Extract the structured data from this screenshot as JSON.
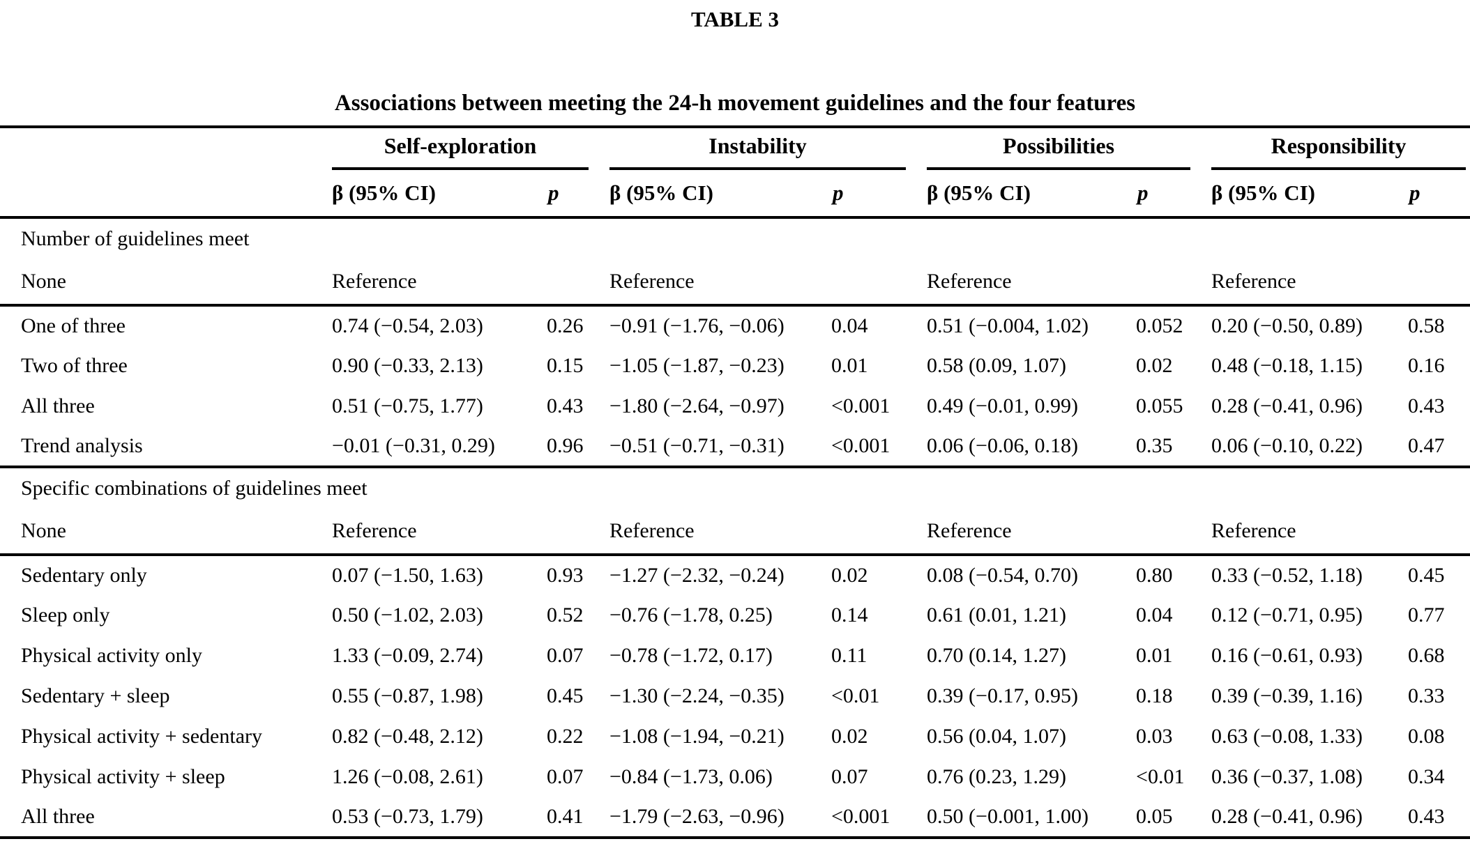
{
  "page": {
    "table_label": "TABLE 3",
    "caption": "Associations between meeting the 24-h movement guidelines and the four features"
  },
  "header": {
    "groups": [
      "Self-exploration",
      "Instability",
      "Possibilities",
      "Responsibility"
    ],
    "beta_header": "β (95% CI)",
    "p_header": "p"
  },
  "rows": [
    {
      "type": "section",
      "label": "Number of guidelines meet"
    },
    {
      "type": "data",
      "label": "None",
      "cells": [
        "Reference",
        "",
        "Reference",
        "",
        "Reference",
        "",
        "Reference",
        ""
      ]
    },
    {
      "type": "data",
      "label": "One of three",
      "cells": [
        "0.74 (−0.54, 2.03)",
        "0.26",
        "−0.91 (−1.76, −0.06)",
        "0.04",
        "0.51 (−0.004, 1.02)",
        "0.052",
        "0.20 (−0.50, 0.89)",
        "0.58"
      ]
    },
    {
      "type": "data",
      "label": "Two of three",
      "cells": [
        "0.90 (−0.33, 2.13)",
        "0.15",
        "−1.05 (−1.87, −0.23)",
        "0.01",
        "0.58 (0.09, 1.07)",
        "0.02",
        "0.48 (−0.18, 1.15)",
        "0.16"
      ]
    },
    {
      "type": "data",
      "label": "All three",
      "cells": [
        "0.51 (−0.75, 1.77)",
        "0.43",
        "−1.80 (−2.64, −0.97)",
        "<0.001",
        "0.49 (−0.01, 0.99)",
        "0.055",
        "0.28 (−0.41, 0.96)",
        "0.43"
      ]
    },
    {
      "type": "data",
      "label": "Trend analysis",
      "cells": [
        "−0.01 (−0.31, 0.29)",
        "0.96",
        "−0.51 (−0.71, −0.31)",
        "<0.001",
        "0.06 (−0.06, 0.18)",
        "0.35",
        "0.06 (−0.10, 0.22)",
        "0.47"
      ]
    },
    {
      "type": "section",
      "label": "Specific combinations of guidelines meet"
    },
    {
      "type": "data",
      "label": "None",
      "cells": [
        "Reference",
        "",
        "Reference",
        "",
        "Reference",
        "",
        "Reference",
        ""
      ]
    },
    {
      "type": "data",
      "label": "Sedentary only",
      "cells": [
        "0.07 (−1.50, 1.63)",
        "0.93",
        "−1.27 (−2.32, −0.24)",
        "0.02",
        "0.08 (−0.54, 0.70)",
        "0.80",
        "0.33 (−0.52, 1.18)",
        "0.45"
      ]
    },
    {
      "type": "data",
      "label": "Sleep only",
      "cells": [
        "0.50 (−1.02, 2.03)",
        "0.52",
        "−0.76 (−1.78, 0.25)",
        "0.14",
        "0.61 (0.01, 1.21)",
        "0.04",
        "0.12 (−0.71, 0.95)",
        "0.77"
      ]
    },
    {
      "type": "data",
      "label": "Physical activity only",
      "cells": [
        "1.33 (−0.09, 2.74)",
        "0.07",
        "−0.78 (−1.72, 0.17)",
        "0.11",
        "0.70 (0.14, 1.27)",
        "0.01",
        "0.16 (−0.61, 0.93)",
        "0.68"
      ]
    },
    {
      "type": "data",
      "label": "Sedentary + sleep",
      "cells": [
        "0.55 (−0.87, 1.98)",
        "0.45",
        "−1.30 (−2.24, −0.35)",
        "<0.01",
        "0.39 (−0.17, 0.95)",
        "0.18",
        "0.39 (−0.39, 1.16)",
        "0.33"
      ]
    },
    {
      "type": "data",
      "label": "Physical activity + sedentary",
      "cells": [
        "0.82 (−0.48, 2.12)",
        "0.22",
        "−1.08 (−1.94, −0.21)",
        "0.02",
        "0.56 (0.04, 1.07)",
        "0.03",
        "0.63 (−0.08, 1.33)",
        "0.08"
      ]
    },
    {
      "type": "data",
      "label": "Physical activity + sleep",
      "cells": [
        "1.26 (−0.08, 2.61)",
        "0.07",
        "−0.84 (−1.73, 0.06)",
        "0.07",
        "0.76 (0.23, 1.29)",
        "<0.01",
        "0.36 (−0.37, 1.08)",
        "0.34"
      ]
    },
    {
      "type": "data",
      "label": "All three",
      "cells": [
        "0.53 (−0.73, 1.79)",
        "0.41",
        "−1.79 (−2.63, −0.96)",
        "<0.001",
        "0.50 (−0.001, 1.00)",
        "0.05",
        "0.28 (−0.41, 0.96)",
        "0.43"
      ]
    }
  ]
}
